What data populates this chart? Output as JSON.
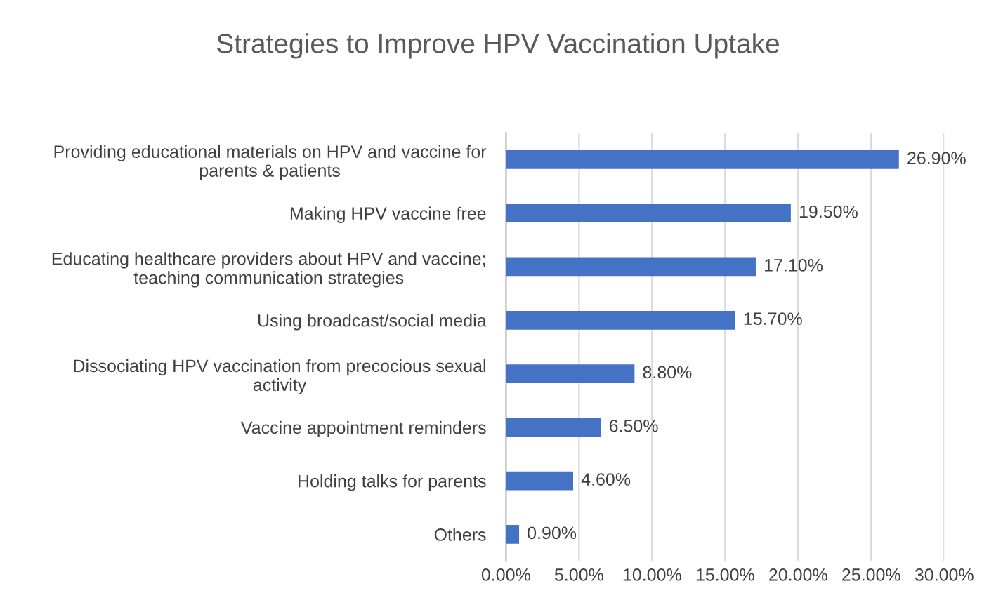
{
  "chart_data": {
    "type": "bar",
    "orientation": "horizontal",
    "title": "Strategies to Improve HPV Vaccination Uptake",
    "categories": [
      "Providing educational materials on HPV and vaccine for\nparents & patients",
      "Making HPV vaccine free",
      "Educating healthcare providers about HPV and vaccine;\nteaching communication strategies",
      "Using broadcast/social media",
      "Dissociating HPV vaccination from precocious sexual\nactivity",
      "Vaccine appointment reminders",
      "Holding talks for parents",
      "Others"
    ],
    "values": [
      26.9,
      19.5,
      17.1,
      15.7,
      8.8,
      6.5,
      4.6,
      0.9
    ],
    "value_labels": [
      "26.90%",
      "19.50%",
      "17.10%",
      "15.70%",
      "8.80%",
      "6.50%",
      "4.60%",
      "0.90%"
    ],
    "color": "#4472c4",
    "xlim": [
      0,
      30
    ],
    "xticks": [
      {
        "value": 0,
        "label": "0.00%"
      },
      {
        "value": 5,
        "label": "5.00%"
      },
      {
        "value": 10,
        "label": "10.00%"
      },
      {
        "value": 15,
        "label": "15.00%"
      },
      {
        "value": 20,
        "label": "20.00%"
      },
      {
        "value": 25,
        "label": "25.00%"
      },
      {
        "value": 30,
        "label": "30.00%"
      }
    ],
    "grid": "x",
    "legend": false
  }
}
